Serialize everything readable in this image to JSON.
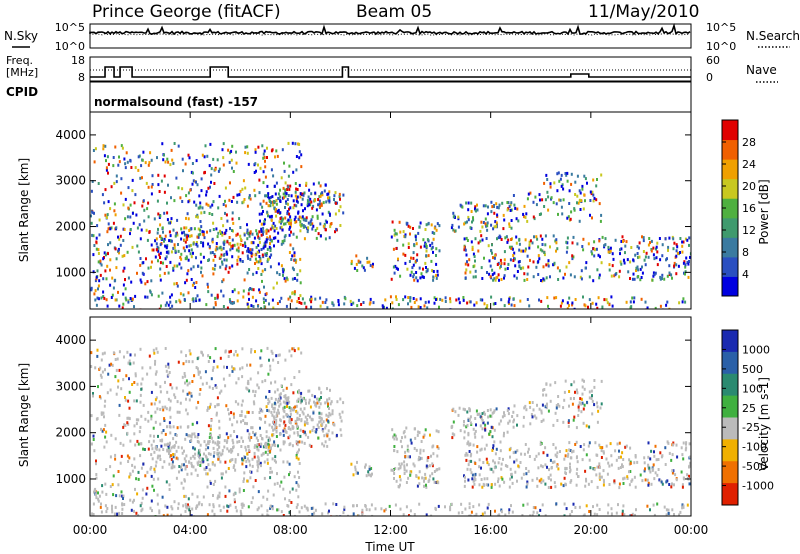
{
  "header": {
    "station": "Prince George (fitACF)",
    "beam": "Beam 05",
    "date": "11/May/2010"
  },
  "top_panels": {
    "nsky_label": "N.Sky",
    "nsearch_label": "N.Search",
    "noise_ticks": [
      "10^5",
      "10^0"
    ],
    "freq_label_line1": "Freq.",
    "freq_label_line2": "[MHz]",
    "freq_ticks": [
      "18",
      "8"
    ],
    "nave_label": "Nave",
    "nave_ticks": [
      "60",
      "0"
    ],
    "cpid_label": "CPID",
    "cpid_text": "normalsound (fast) -157"
  },
  "chart_data": [
    {
      "type": "heatmap",
      "panel": "power",
      "ylabel": "Slant Range [km]",
      "ylim": [
        200,
        4500
      ],
      "yticks": [
        "1000",
        "2000",
        "3000",
        "4000"
      ],
      "colorbar_label": "Power [dB]",
      "colorbar_ticks": [
        "4",
        "8",
        "12",
        "16",
        "20",
        "24",
        "28"
      ],
      "colors": [
        "#0000e0",
        "#2a4fc0",
        "#3a7aa0",
        "#3f9a6e",
        "#4fb040",
        "#c8c820",
        "#f0a000",
        "#f06000",
        "#e00000"
      ]
    },
    {
      "type": "heatmap",
      "panel": "velocity",
      "ylabel": "Slant Range [km]",
      "ylim": [
        200,
        4500
      ],
      "yticks": [
        "1000",
        "2000",
        "3000",
        "4000"
      ],
      "colorbar_label": "Velocity [m s-1]",
      "colorbar_ticks": [
        "1000",
        "500",
        "100",
        "25",
        "-25",
        "-100",
        "-500",
        "-1000"
      ],
      "colors": [
        "#1a2ab0",
        "#2a60a8",
        "#2a8a70",
        "#40b040",
        "#bbbbbb",
        "#f0b000",
        "#f07000",
        "#e02000"
      ]
    }
  ],
  "x_axis": {
    "ticks": [
      "00:00",
      "04:00",
      "08:00",
      "12:00",
      "16:00",
      "20:00",
      "00:00"
    ],
    "label": "Time UT"
  }
}
